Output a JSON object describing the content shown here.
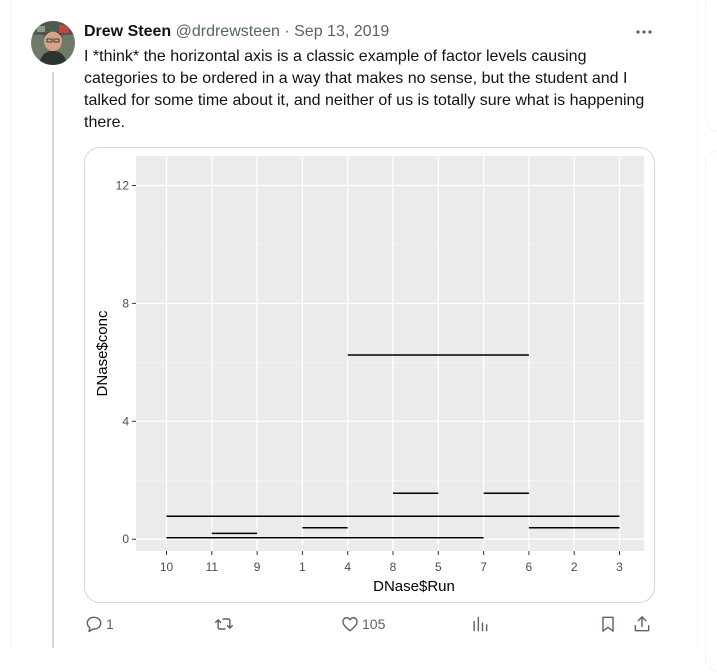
{
  "tweet": {
    "author_name": "Drew Steen",
    "handle": "@drdrewsteen",
    "separator": "·",
    "date": "Sep 13, 2019",
    "text": "I *think* the horizontal axis is a classic example of factor levels causing categories to be ordered in a way that makes no sense, but the student and I talked for some time about it, and neither of us is totally sure what is happening there.",
    "more_icon": "more-horizontal-icon"
  },
  "chart_data": {
    "type": "line",
    "xlabel": "DNase$Run",
    "ylabel": "DNase$conc",
    "categories": [
      "10",
      "11",
      "9",
      "1",
      "4",
      "8",
      "5",
      "7",
      "6",
      "2",
      "3"
    ],
    "ylim": [
      -0.4,
      13
    ],
    "yticks": [
      0,
      4,
      8,
      12
    ],
    "grid": true,
    "segments": [
      {
        "x_from": "10",
        "x_to": "3",
        "y": 0.78
      },
      {
        "x_from": "10",
        "x_to": "7",
        "y": 0.05
      },
      {
        "x_from": "11",
        "x_to": "9",
        "y": 0.2
      },
      {
        "x_from": "1",
        "x_to": "4",
        "y": 0.39
      },
      {
        "x_from": "4",
        "x_to": "6",
        "y": 6.25
      },
      {
        "x_from": "8",
        "x_to": "5",
        "y": 1.56
      },
      {
        "x_from": "7",
        "x_to": "6",
        "y": 1.56
      },
      {
        "x_from": "6",
        "x_to": "3",
        "y": 0.39
      }
    ]
  },
  "actions": {
    "reply_count": "1",
    "retweet_count": "",
    "like_count": "105"
  },
  "colors": {
    "panel_bg": "#ebebeb",
    "grid": "#ffffff",
    "line": "#000000",
    "secondary_text": "#536471",
    "thread_line": "#cfd9de"
  }
}
